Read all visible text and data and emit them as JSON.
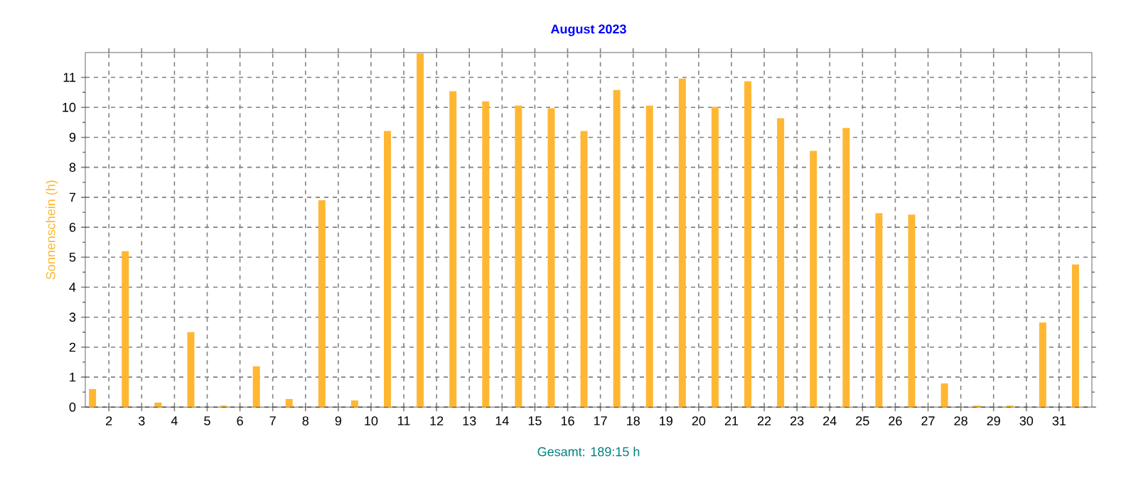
{
  "chart_data": {
    "type": "bar",
    "title": "August 2023",
    "ylabel": "Sonnenschein  (h)",
    "annotations": [
      "Gesamt: 189:15 h"
    ],
    "x": [
      1.5,
      2.5,
      3.5,
      4.5,
      5.5,
      6.5,
      7.5,
      8.5,
      9.5,
      10.5,
      11.5,
      12.5,
      13.5,
      14.5,
      15.5,
      16.5,
      17.5,
      18.5,
      19.5,
      20.5,
      21.5,
      22.5,
      23.5,
      24.5,
      25.5,
      26.5,
      27.5,
      28.5,
      29.5,
      30.5,
      31.5
    ],
    "values": [
      0.6,
      5.2,
      0.15,
      2.5,
      0.05,
      1.36,
      0.27,
      6.9,
      0.22,
      9.21,
      11.8,
      10.54,
      10.2,
      10.06,
      9.97,
      9.21,
      10.58,
      10.06,
      10.96,
      10.02,
      10.87,
      9.64,
      8.55,
      9.31,
      6.47,
      6.42,
      0.79,
      0.05,
      0.05,
      2.82,
      4.76
    ],
    "color": "#ffb733",
    "xlim": [
      1.28,
      32.0
    ],
    "ylim": [
      0,
      11.83
    ],
    "xticks": [
      2,
      3,
      4,
      5,
      6,
      7,
      8,
      9,
      10,
      11,
      12,
      13,
      14,
      15,
      16,
      17,
      18,
      19,
      20,
      21,
      22,
      23,
      24,
      25,
      26,
      27,
      28,
      29,
      30,
      31
    ],
    "yticks": [
      0,
      1,
      2,
      3,
      4,
      5,
      6,
      7,
      8,
      9,
      10,
      11
    ],
    "grid": true
  }
}
